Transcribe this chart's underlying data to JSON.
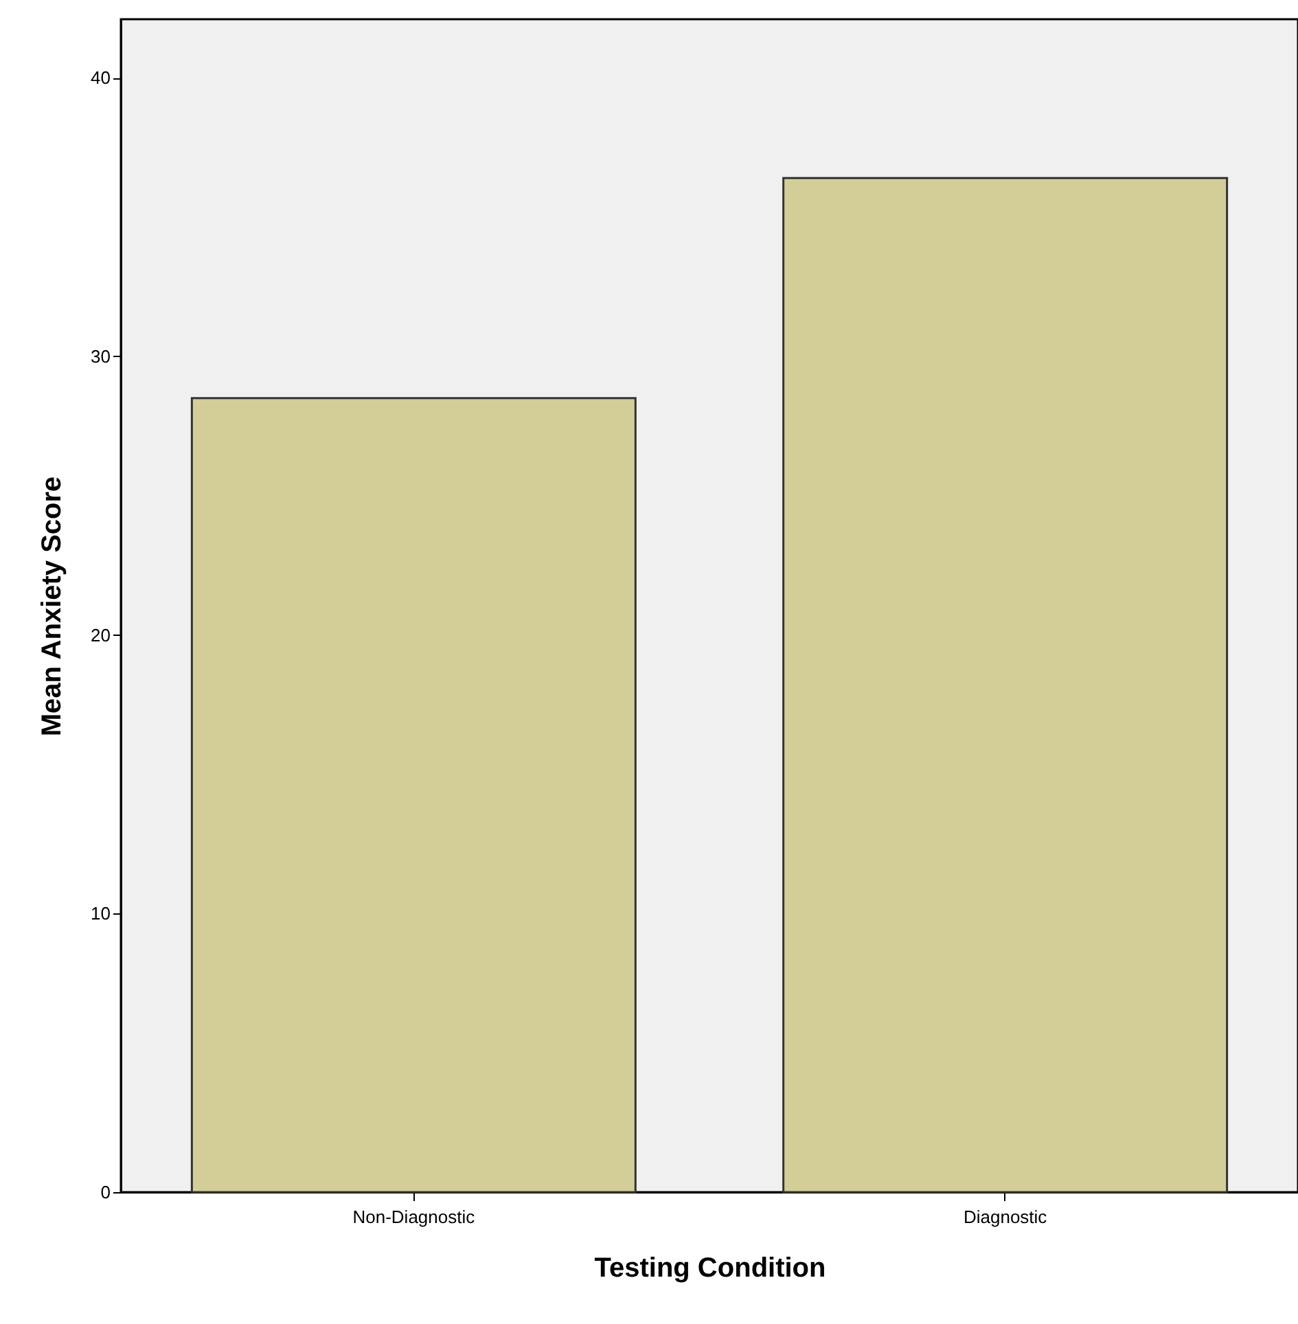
{
  "chart_data": {
    "type": "bar",
    "categories": [
      "Non-Diagnostic",
      "Diagnostic"
    ],
    "values": [
      28.5,
      36.4
    ],
    "color": "#d3ce97",
    "xlabel": "Testing Condition",
    "ylabel": "Mean Anxiety Score",
    "ylim": [
      0,
      42.1
    ],
    "yticks": [
      0,
      10,
      20,
      30,
      40
    ],
    "grid": false
  }
}
